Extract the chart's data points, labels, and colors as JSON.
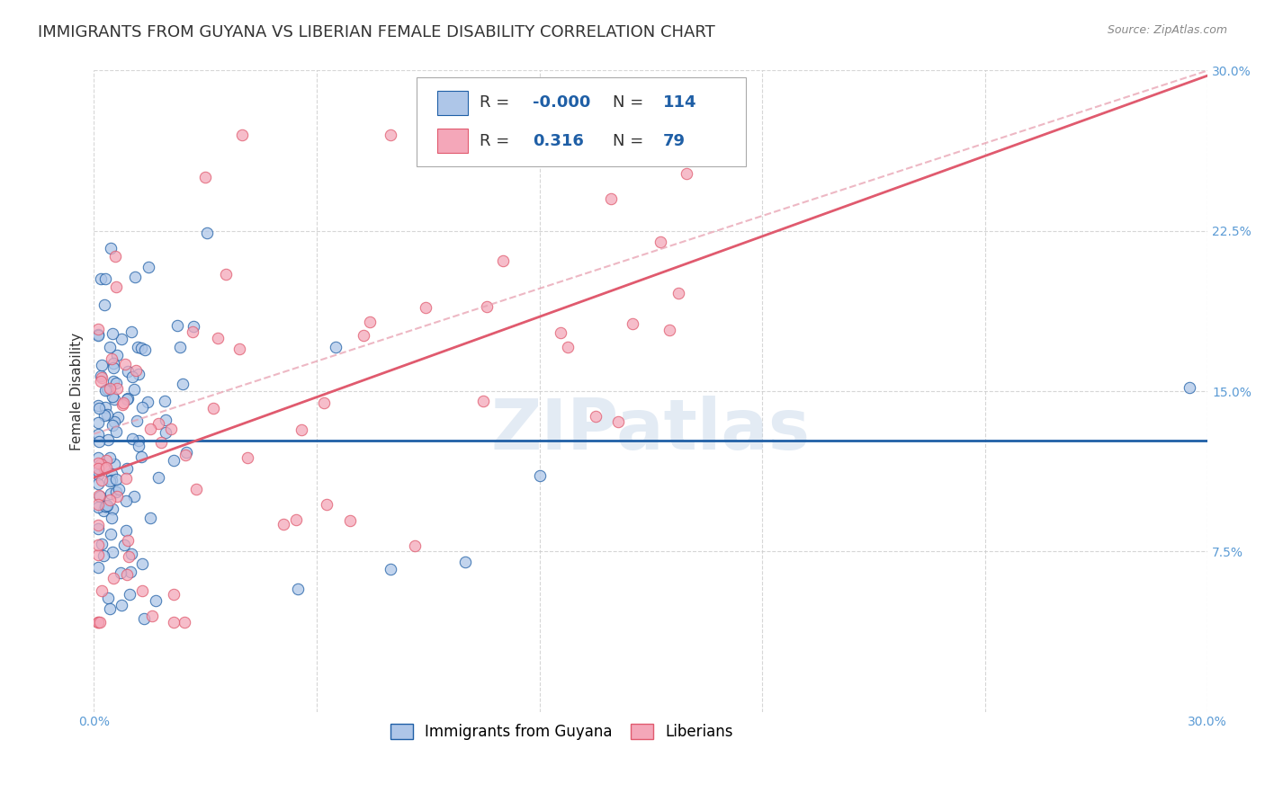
{
  "title": "IMMIGRANTS FROM GUYANA VS LIBERIAN FEMALE DISABILITY CORRELATION CHART",
  "source": "Source: ZipAtlas.com",
  "ylabel": "Female Disability",
  "xlim": [
    0.0,
    0.3
  ],
  "ylim": [
    0.0,
    0.3
  ],
  "ytick_positions": [
    0.075,
    0.15,
    0.225,
    0.3
  ],
  "xtick_positions": [
    0.0,
    0.06,
    0.12,
    0.18,
    0.24,
    0.3
  ],
  "grid_color": "#cccccc",
  "background_color": "#ffffff",
  "series1_color": "#aec6e8",
  "series2_color": "#f4a7b9",
  "line1_color": "#1f5fa6",
  "line2_color": "#e05a6e",
  "title_fontsize": 13,
  "axis_label_fontsize": 11,
  "tick_fontsize": 10,
  "series1_label": "Immigrants from Guyana",
  "series2_label": "Liberians",
  "R1": -0.0,
  "R2": 0.316,
  "N1": 114,
  "N2": 79
}
